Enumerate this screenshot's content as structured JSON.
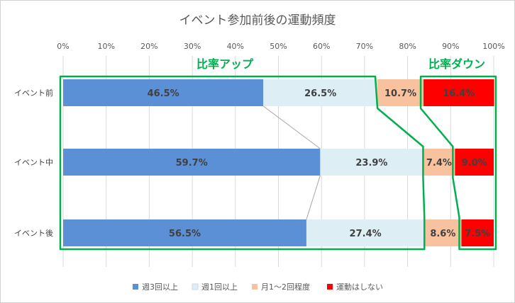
{
  "chart_data": {
    "type": "bar",
    "orientation": "horizontal",
    "stacking": "percent",
    "title": "イベント参加前後の運動頻度",
    "categories": [
      "イベント前",
      "イベント中",
      "イベント後"
    ],
    "series": [
      {
        "name": "週3回以上",
        "color": "#5b8fd6",
        "values": [
          46.5,
          59.7,
          56.5
        ],
        "labels": [
          "46.5%",
          "59.7%",
          "56.5%"
        ]
      },
      {
        "name": "週1回以上",
        "color": "#ddeef5",
        "values": [
          26.5,
          23.9,
          27.4
        ],
        "labels": [
          "26.5%",
          "23.9%",
          "27.4%"
        ]
      },
      {
        "name": "月1～2回程度",
        "color": "#f8c29e",
        "values": [
          10.7,
          7.4,
          8.6
        ],
        "labels": [
          "10.7%",
          "7.4%",
          "8.6%"
        ]
      },
      {
        "name": "運動はしない",
        "color": "#ff0000",
        "values": [
          16.4,
          9.0,
          7.5
        ],
        "labels": [
          "16.4%",
          "9.0%",
          "7.5%"
        ]
      }
    ],
    "x_ticks": [
      "0%",
      "10%",
      "20%",
      "30%",
      "40%",
      "50%",
      "60%",
      "70%",
      "80%",
      "90%",
      "100%"
    ],
    "xlim": [
      0,
      100
    ],
    "grid": true,
    "legend_position": "bottom",
    "annotations": [
      {
        "text": "比率アップ",
        "color": "#00b050"
      },
      {
        "text": "比率ダウン",
        "color": "#00b050"
      }
    ]
  }
}
